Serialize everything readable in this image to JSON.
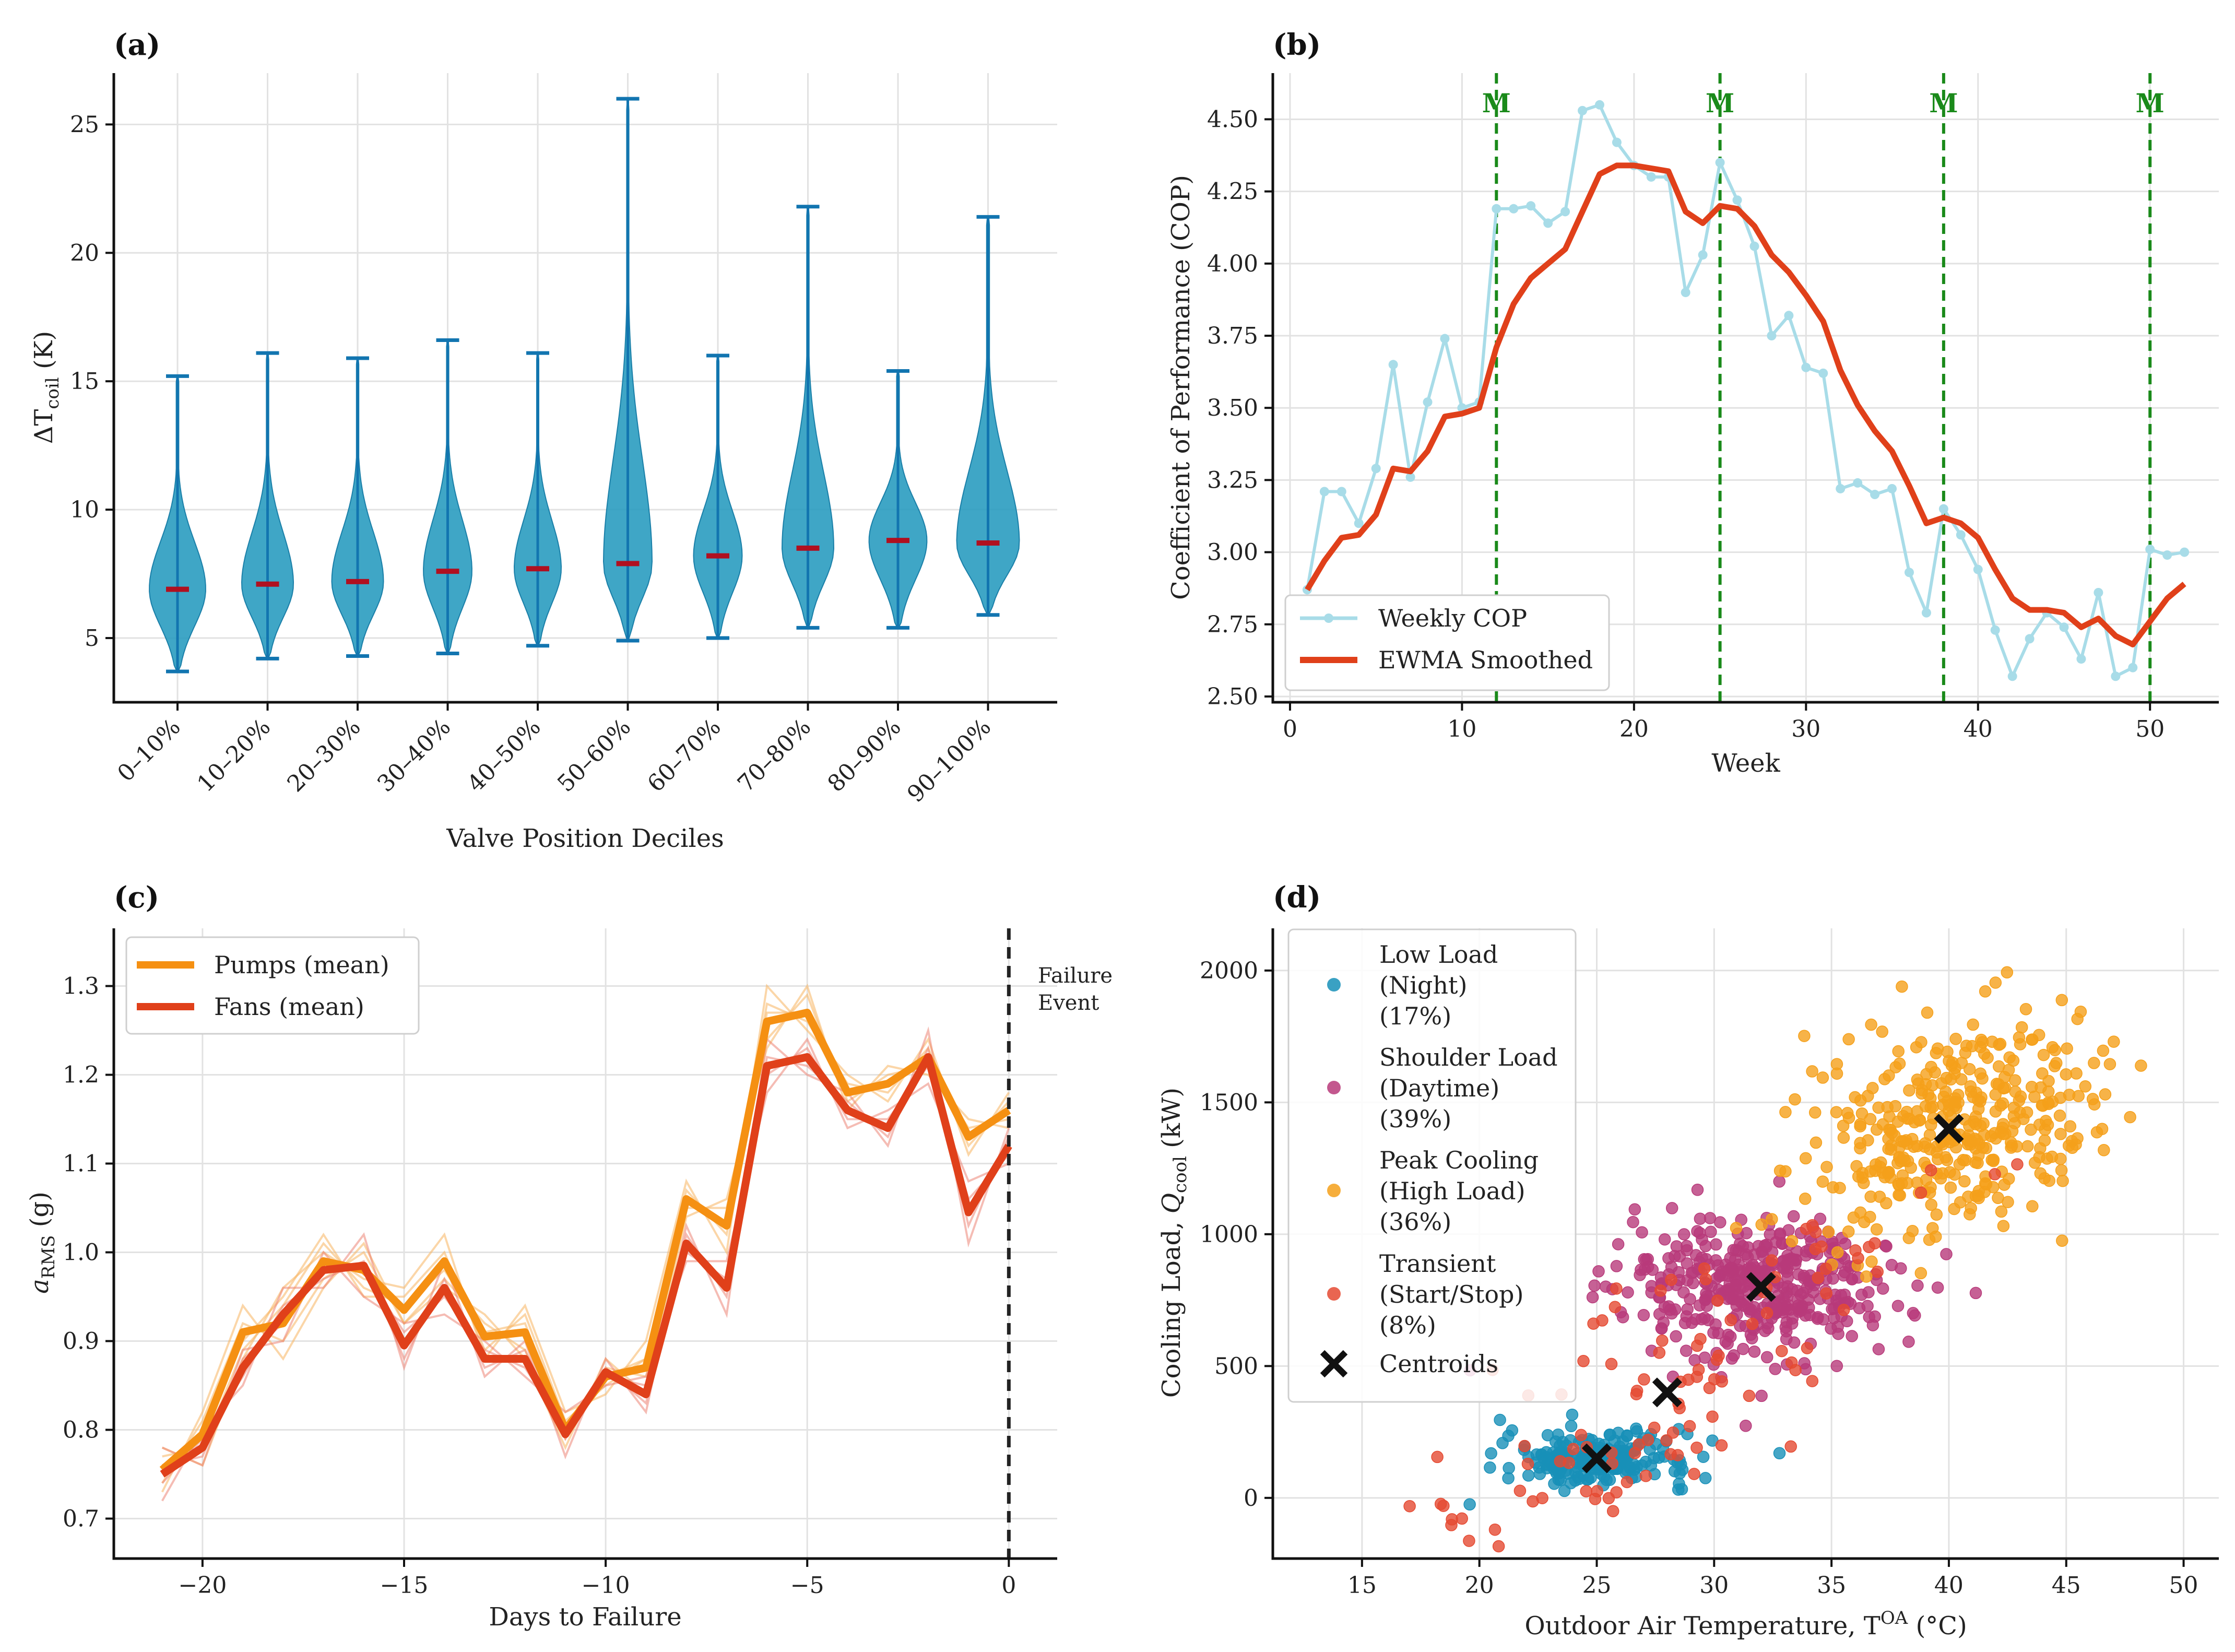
{
  "chart_data": [
    {
      "panel": "(a)",
      "type": "violin",
      "xlabel": "Valve Position Deciles",
      "ylabel": "ΔT",
      "ylabel_sub": "coil",
      "ylabel_unit": " (K)",
      "ylim": [
        2.5,
        27
      ],
      "yticks": [
        5,
        10,
        15,
        20,
        25
      ],
      "color": "#2a9cc0",
      "median_color": "#b01020",
      "categories": [
        "0–10%",
        "10–20%",
        "20–30%",
        "30–40%",
        "40–50%",
        "50–60%",
        "60–70%",
        "70–80%",
        "80–90%",
        "90–100%"
      ],
      "min": [
        3.7,
        4.2,
        4.3,
        4.4,
        4.7,
        4.9,
        5.0,
        5.4,
        5.4,
        5.9
      ],
      "max": [
        15.2,
        16.1,
        15.9,
        16.6,
        16.1,
        26.0,
        16.0,
        21.8,
        15.4,
        21.4
      ],
      "median": [
        6.9,
        7.1,
        7.2,
        7.6,
        7.7,
        7.9,
        8.2,
        8.5,
        8.8,
        8.7
      ],
      "width": [
        0.72,
        0.66,
        0.66,
        0.62,
        0.6,
        0.62,
        0.62,
        0.66,
        0.74,
        0.8
      ]
    },
    {
      "panel": "(b)",
      "type": "line",
      "xlabel": "Week",
      "ylabel": "Coefficient of Performance (COP)",
      "xlim": [
        -1,
        54
      ],
      "ylim": [
        2.48,
        4.66
      ],
      "xticks": [
        0,
        10,
        20,
        30,
        40,
        50
      ],
      "yticks": [
        2.5,
        2.75,
        3.0,
        3.25,
        3.5,
        3.75,
        4.0,
        4.25,
        4.5
      ],
      "maintenance_weeks": [
        12,
        25,
        38,
        50
      ],
      "maintenance_label": "M",
      "x": [
        1,
        2,
        3,
        4,
        5,
        6,
        7,
        8,
        9,
        10,
        11,
        12,
        13,
        14,
        15,
        16,
        17,
        18,
        19,
        20,
        21,
        22,
        23,
        24,
        25,
        26,
        27,
        28,
        29,
        30,
        31,
        32,
        33,
        34,
        35,
        36,
        37,
        38,
        39,
        40,
        41,
        42,
        43,
        44,
        45,
        46,
        47,
        48,
        49,
        50,
        51,
        52
      ],
      "series": [
        {
          "name": "Weekly COP",
          "color": "#a8dce8",
          "values": [
            2.87,
            3.21,
            3.21,
            3.1,
            3.29,
            3.65,
            3.26,
            3.52,
            3.74,
            3.5,
            3.52,
            4.19,
            4.19,
            4.2,
            4.14,
            4.18,
            4.53,
            4.55,
            4.42,
            4.34,
            4.3,
            4.3,
            3.9,
            4.03,
            4.35,
            4.22,
            4.06,
            3.75,
            3.82,
            3.64,
            3.62,
            3.22,
            3.24,
            3.2,
            3.22,
            2.93,
            2.79,
            3.15,
            3.06,
            2.94,
            2.73,
            2.57,
            2.7,
            2.79,
            2.74,
            2.63,
            2.86,
            2.57,
            2.6,
            3.01,
            2.99,
            3.0
          ]
        },
        {
          "name": "EWMA Smoothed",
          "color": "#e0401a",
          "values": [
            2.87,
            2.97,
            3.05,
            3.06,
            3.13,
            3.29,
            3.28,
            3.35,
            3.47,
            3.48,
            3.5,
            3.71,
            3.86,
            3.95,
            4.0,
            4.05,
            4.18,
            4.31,
            4.34,
            4.34,
            4.33,
            4.32,
            4.18,
            4.14,
            4.2,
            4.19,
            4.13,
            4.03,
            3.97,
            3.89,
            3.8,
            3.63,
            3.51,
            3.42,
            3.35,
            3.23,
            3.1,
            3.12,
            3.1,
            3.05,
            2.94,
            2.84,
            2.8,
            2.8,
            2.79,
            2.74,
            2.77,
            2.71,
            2.68,
            2.76,
            2.84,
            2.89
          ]
        }
      ]
    },
    {
      "panel": "(c)",
      "type": "line",
      "xlabel": "Days to Failure",
      "ylabel": "a",
      "ylabel_sub": "RMS",
      "ylabel_unit": " (g)",
      "xlim": [
        -22.2,
        1.2
      ],
      "ylim": [
        0.655,
        1.365
      ],
      "xticks": [
        -20,
        -15,
        -10,
        -5,
        0
      ],
      "xtick_labels": [
        "−20",
        "−15",
        "−10",
        "−5",
        "0"
      ],
      "yticks": [
        0.7,
        0.8,
        0.9,
        1.0,
        1.1,
        1.2,
        1.3
      ],
      "annotation": [
        "Failure",
        "Event"
      ],
      "x": [
        -21,
        -20,
        -19,
        -18,
        -17,
        -16,
        -15,
        -14,
        -13,
        -12,
        -11,
        -10,
        -9,
        -8,
        -7,
        -6,
        -5,
        -4,
        -3,
        -2,
        -1,
        0
      ],
      "series": [
        {
          "name": "Pumps (mean)",
          "color": "#f59012",
          "values": [
            0.755,
            0.795,
            0.91,
            0.92,
            0.99,
            0.98,
            0.935,
            0.99,
            0.905,
            0.91,
            0.8,
            0.86,
            0.87,
            1.06,
            1.03,
            1.26,
            1.27,
            1.18,
            1.19,
            1.22,
            1.13,
            1.16
          ]
        },
        {
          "name": "Fans (mean)",
          "color": "#e0401a",
          "values": [
            0.75,
            0.78,
            0.87,
            0.93,
            0.98,
            0.985,
            0.895,
            0.96,
            0.88,
            0.88,
            0.795,
            0.865,
            0.84,
            1.01,
            0.96,
            1.21,
            1.22,
            1.16,
            1.14,
            1.22,
            1.045,
            1.12
          ]
        }
      ],
      "individual_pumps": [
        [
          0.78,
          0.76,
          0.88,
          0.96,
          1.0,
          0.97,
          0.96,
          1.02,
          0.88,
          0.94,
          0.82,
          0.84,
          0.9,
          1.08,
          1.0,
          1.3,
          1.25,
          1.2,
          1.17,
          1.24,
          1.11,
          1.18
        ],
        [
          0.73,
          0.82,
          0.94,
          0.88,
          0.96,
          1.01,
          0.92,
          0.96,
          0.93,
          0.88,
          0.78,
          0.88,
          0.84,
          1.04,
          1.06,
          1.23,
          1.3,
          1.16,
          1.21,
          1.2,
          1.15,
          1.14
        ],
        [
          0.76,
          0.79,
          0.9,
          0.95,
          1.02,
          0.95,
          0.95,
          1.0,
          0.89,
          0.93,
          0.81,
          0.85,
          0.88,
          1.07,
          1.02,
          1.28,
          1.26,
          1.19,
          1.18,
          1.23,
          1.12,
          1.17
        ],
        [
          0.74,
          0.81,
          0.92,
          0.9,
          0.97,
          1.0,
          0.92,
          0.97,
          0.92,
          0.89,
          0.79,
          0.87,
          0.86,
          1.05,
          1.05,
          1.24,
          1.29,
          1.17,
          1.2,
          1.21,
          1.14,
          1.15
        ],
        [
          0.77,
          0.78,
          0.89,
          0.94,
          1.01,
          0.96,
          0.94,
          0.98,
          0.91,
          0.92,
          0.8,
          0.86,
          0.88,
          1.06,
          1.03,
          1.27,
          1.27,
          1.18,
          1.19,
          1.22,
          1.13,
          1.16
        ]
      ],
      "individual_fans": [
        [
          0.72,
          0.8,
          0.85,
          0.96,
          0.96,
          1.02,
          0.87,
          0.99,
          0.86,
          0.9,
          0.77,
          0.88,
          0.82,
          1.03,
          0.93,
          1.24,
          1.2,
          1.18,
          1.12,
          1.25,
          1.01,
          1.14
        ],
        [
          0.78,
          0.76,
          0.89,
          0.9,
          1.0,
          0.95,
          0.92,
          0.93,
          0.9,
          0.86,
          0.82,
          0.85,
          0.86,
          0.99,
          0.99,
          1.18,
          1.24,
          1.14,
          1.16,
          1.19,
          1.08,
          1.1
        ],
        [
          0.74,
          0.79,
          0.86,
          0.94,
          0.97,
          0.99,
          0.88,
          0.97,
          0.87,
          0.89,
          0.79,
          0.87,
          0.83,
          1.02,
          0.95,
          1.22,
          1.21,
          1.17,
          1.13,
          1.23,
          1.03,
          1.13
        ],
        [
          0.76,
          0.77,
          0.88,
          0.92,
          0.99,
          0.98,
          0.91,
          0.95,
          0.89,
          0.87,
          0.8,
          0.86,
          0.85,
          1.0,
          0.97,
          1.2,
          1.23,
          1.15,
          1.15,
          1.21,
          1.06,
          1.11
        ]
      ]
    },
    {
      "panel": "(d)",
      "type": "scatter",
      "xlabel": "Outdoor Air Temperature, T",
      "xlabel_sup": "OA",
      "xlabel_unit": " (°C)",
      "ylabel": "Cooling Load, ",
      "ylabel_q": "Q",
      "ylabel_sub": "cool",
      "ylabel_unit": " (kW)",
      "xlim": [
        11.2,
        51.5
      ],
      "ylim": [
        -230,
        2160
      ],
      "xticks": [
        15,
        20,
        25,
        30,
        35,
        40,
        45,
        50
      ],
      "yticks": [
        0,
        500,
        1000,
        1500,
        2000
      ],
      "clusters": [
        {
          "name": "Low Load (Night) (17%)",
          "legend_lines": [
            "Low Load",
            "(Night)",
            "(17%)"
          ],
          "color": "#1890b8",
          "share": 0.17,
          "center": [
            25,
            150
          ],
          "spread": [
            2.0,
            50
          ],
          "count": 220
        },
        {
          "name": "Shoulder Load (Daytime) (39%)",
          "legend_lines": [
            "Shoulder Load",
            "(Daytime)",
            "(39%)"
          ],
          "color": "#b83a7a",
          "share": 0.39,
          "center": [
            32,
            800
          ],
          "spread": [
            2.9,
            130
          ],
          "count": 420
        },
        {
          "name": "Peak Cooling (High Load) (36%)",
          "legend_lines": [
            "Peak Cooling",
            "(High Load)",
            "(36%)"
          ],
          "color": "#f5a01a",
          "share": 0.36,
          "center": [
            40,
            1400
          ],
          "spread": [
            3.1,
            190
          ],
          "count": 400
        },
        {
          "name": "Transient (Start/Stop) (8%)",
          "legend_lines": [
            "Transient",
            "(Start/Stop)",
            "(8%)"
          ],
          "color": "#e54a32",
          "share": 0.08,
          "center": [
            28,
            400
          ],
          "spread": [
            5.5,
            230
          ],
          "count": 120
        }
      ],
      "centroids": {
        "name": "Centroids",
        "x": [
          25,
          32,
          40,
          28
        ],
        "y": [
          150,
          800,
          1400,
          400
        ]
      }
    }
  ]
}
